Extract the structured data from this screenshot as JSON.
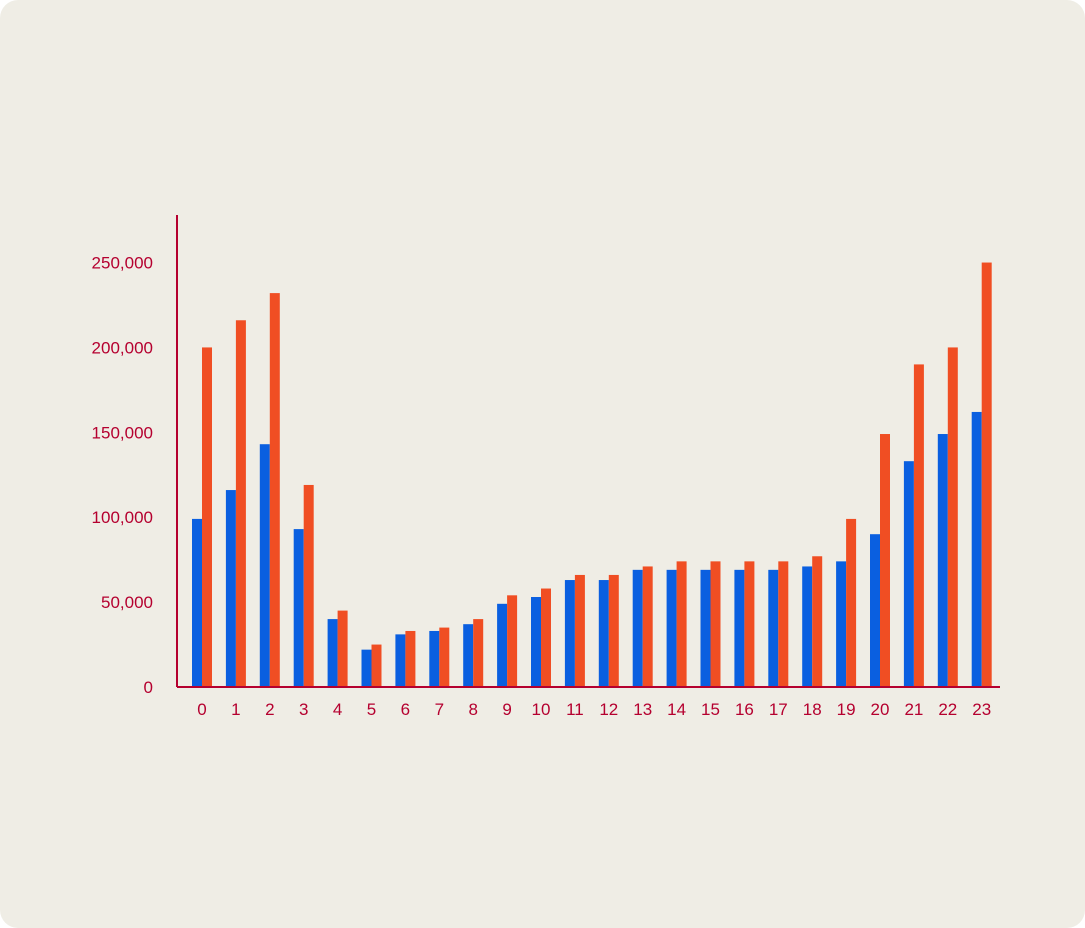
{
  "chart_data": {
    "type": "bar",
    "categories": [
      "0",
      "1",
      "2",
      "3",
      "4",
      "5",
      "6",
      "7",
      "8",
      "9",
      "10",
      "11",
      "12",
      "13",
      "14",
      "15",
      "16",
      "17",
      "18",
      "19",
      "20",
      "21",
      "22",
      "23"
    ],
    "series": [
      {
        "color": "#0a5fe0",
        "values": [
          99000,
          116000,
          143000,
          93000,
          40000,
          22000,
          31000,
          33000,
          37000,
          49000,
          53000,
          63000,
          63000,
          69000,
          69000,
          69000,
          69000,
          69000,
          71000,
          74000,
          90000,
          133000,
          149000,
          162000
        ]
      },
      {
        "color": "#f04e23",
        "values": [
          200000,
          216000,
          232000,
          119000,
          45000,
          25000,
          33000,
          35000,
          40000,
          54000,
          58000,
          66000,
          66000,
          71000,
          74000,
          74000,
          74000,
          74000,
          77000,
          99000,
          149000,
          190000,
          200000,
          250000
        ]
      }
    ],
    "ylim": [
      0,
      278000
    ],
    "yticks": [
      0,
      50000,
      100000,
      150000,
      200000,
      250000
    ],
    "ytick_labels": [
      "0",
      "50,000",
      "100,000",
      "150,000",
      "200,000",
      "250,000"
    ],
    "grid": false,
    "axis_color": "#b5002f",
    "background": "#efede5"
  }
}
